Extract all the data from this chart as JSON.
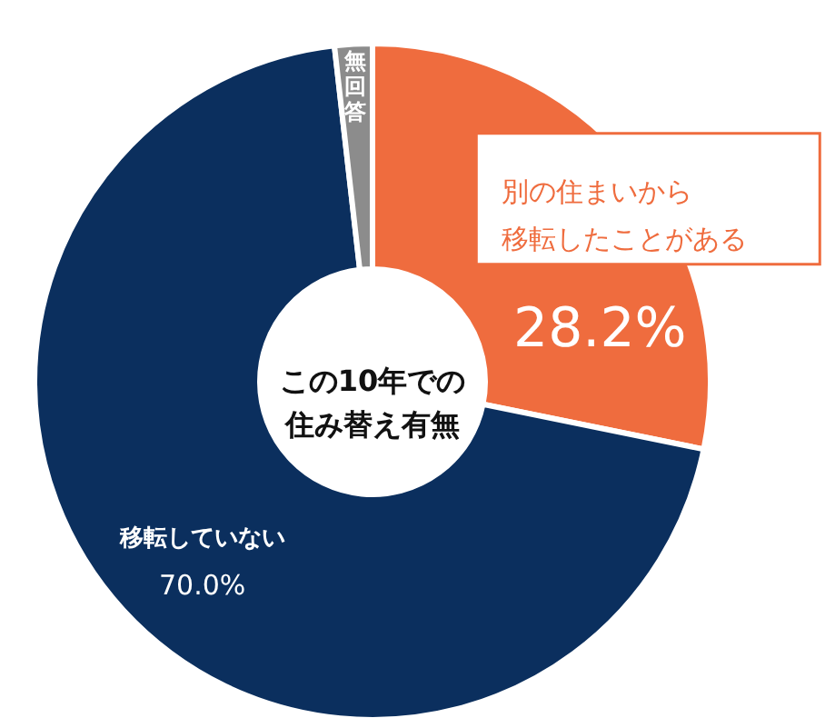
{
  "chart_data": {
    "type": "donut",
    "title": "この10年での住み替え有無",
    "categories": [
      "別の住まいから移転したことがある",
      "移転していない",
      "無回答"
    ],
    "values": [
      28.2,
      70.0,
      1.8
    ],
    "value_labels": [
      "28.2%",
      "70.0%",
      null
    ],
    "colors": [
      "#ef6c3e",
      "#0b2f5e",
      "#8c8c8c"
    ]
  }
}
